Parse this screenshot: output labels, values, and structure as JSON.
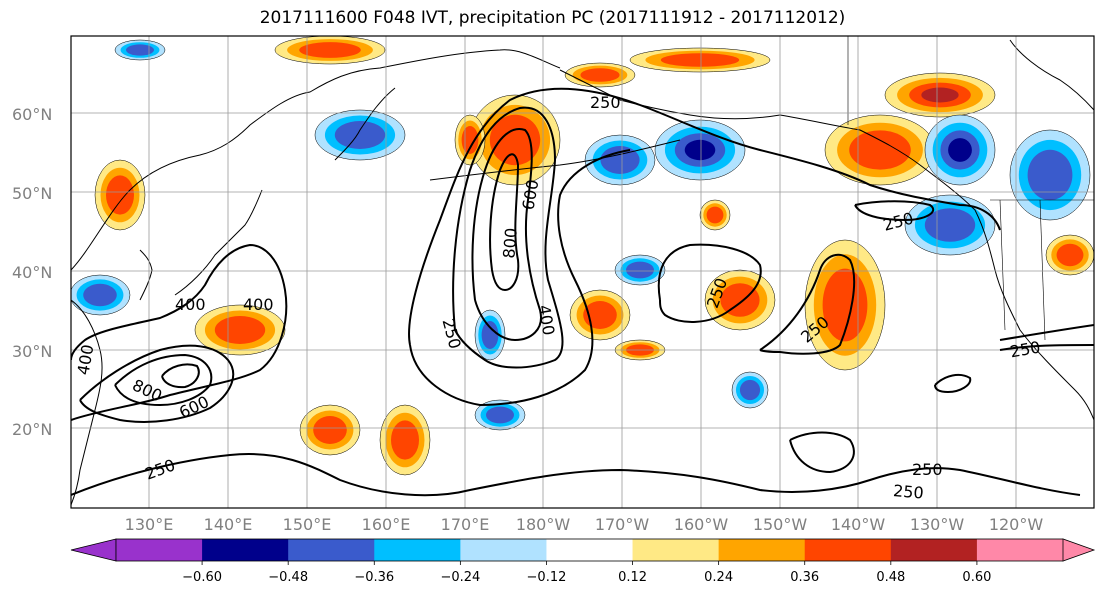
{
  "title": "2017111600 F048 IVT, precipitation PC (2017111912 - 2017112012)",
  "map": {
    "lat_labels": [
      "60°N",
      "50°N",
      "40°N",
      "30°N",
      "20°N"
    ],
    "lon_labels": [
      "130°E",
      "140°E",
      "150°E",
      "160°E",
      "170°E",
      "180°W",
      "170°W",
      "160°W",
      "150°W",
      "140°W",
      "130°W",
      "120°W"
    ],
    "gridlines": true,
    "coastline_color": "#000000",
    "contour_color": "#000000",
    "contour_labels": [
      "250",
      "250",
      "250",
      "250",
      "250",
      "250",
      "250",
      "250",
      "400",
      "400",
      "400",
      "400",
      "600",
      "600",
      "800",
      "800",
      "250"
    ]
  },
  "colorbar": {
    "ticks": [
      "−0.60",
      "−0.48",
      "−0.36",
      "−0.24",
      "−0.12",
      "0.12",
      "0.24",
      "0.36",
      "0.48",
      "0.60"
    ],
    "colors": [
      "#9932cc",
      "#00008b",
      "#3a5bcc",
      "#00bfff",
      "#b0e2ff",
      "#ffffff",
      "#ffe985",
      "#ffa500",
      "#ff4500",
      "#b22222",
      "#ff88a8"
    ],
    "extend": "both"
  },
  "colors": {
    "neg_strong": "#00008b",
    "neg_mid": "#3a5bcc",
    "neg_light": "#00bfff",
    "neg_pale": "#b0e2ff",
    "pos_pale": "#ffe985",
    "pos_light": "#ffa500",
    "pos_mid": "#ff4500",
    "pos_strong": "#b22222",
    "pos_max": "#ff88a8",
    "purple": "#9932cc"
  }
}
